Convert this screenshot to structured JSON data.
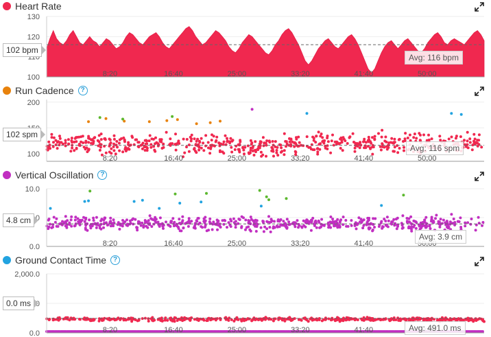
{
  "colors": {
    "heart_rate": "#f0284f",
    "cadence_dot": "#e8820c",
    "vertical_dot": "#c12fc1",
    "gct_dot": "#22a3e0",
    "green_dot": "#5cb82e",
    "help": "#2a9fd8"
  },
  "icons": {
    "expand": "expand-arrows-icon",
    "help": "question-circle-icon"
  },
  "panels": [
    {
      "title": "Heart Rate",
      "dot_color": "#f0284f",
      "help": false,
      "hover_label": "102 bpm",
      "avg_label": "Avg: 116 bpm"
    },
    {
      "title": "Run Cadence",
      "dot_color": "#e8820c",
      "help": true,
      "hover_label": "102 spm",
      "avg_label": "Avg: 116 spm"
    },
    {
      "title": "Vertical Oscillation",
      "dot_color": "#c12fc1",
      "help": true,
      "hover_label": "4.8 cm",
      "avg_label": "Avg: 3.9 cm"
    },
    {
      "title": "Ground Contact Time",
      "dot_color": "#22a3e0",
      "help": true,
      "hover_label": "0.0 ms",
      "avg_label": "Avg: 491.0 ms"
    }
  ],
  "x_ticks": [
    "8:20",
    "16:40",
    "25:00",
    "33:20",
    "41:40",
    "50:00"
  ],
  "chart_data": [
    {
      "type": "area",
      "title": "Heart Rate",
      "y_ticks": [
        "130",
        "120",
        "110",
        "100"
      ],
      "ylim": [
        100,
        130
      ],
      "xlim_min": [
        0,
        57.5
      ],
      "average": 116,
      "series": [
        {
          "name": "Heart Rate",
          "values": [
            114,
            119,
            123,
            119,
            117,
            116,
            118,
            121,
            123,
            120,
            117,
            116,
            118,
            120,
            118,
            117,
            115,
            117,
            119,
            118,
            116,
            114,
            115,
            117,
            120,
            122,
            121,
            119,
            117,
            116,
            118,
            120,
            121,
            122,
            120,
            117,
            115,
            114,
            116,
            118,
            120,
            122,
            124,
            125,
            123,
            120,
            118,
            116,
            117,
            119,
            121,
            123,
            122,
            120,
            118,
            115,
            113,
            112,
            114,
            117,
            119,
            121,
            120,
            118,
            116,
            114,
            112,
            111,
            113,
            116,
            118,
            121,
            123,
            124,
            122,
            119,
            116,
            112,
            108,
            106,
            108,
            111,
            114,
            116,
            118,
            119,
            117,
            115,
            114,
            116,
            118,
            120,
            121,
            119,
            116,
            112,
            108,
            104,
            102,
            104,
            108,
            112,
            115,
            117,
            118,
            116,
            114,
            116,
            118,
            119,
            117,
            115,
            113,
            112,
            114,
            117,
            119,
            121,
            122,
            120,
            117,
            116,
            118,
            119,
            118,
            117,
            116,
            118,
            120,
            122,
            123,
            121,
            118
          ]
        }
      ]
    },
    {
      "type": "scatter",
      "title": "Run Cadence",
      "y_ticks": [
        "200",
        "150",
        "100"
      ],
      "ylim": [
        85,
        205
      ],
      "average": 116,
      "series": [
        {
          "name": "Run Cadence",
          "center": 120,
          "spread": 18,
          "count": 600
        }
      ],
      "high_points_orange": [
        [
          5.5,
          162
        ],
        [
          7.8,
          168
        ],
        [
          10.2,
          163
        ],
        [
          13.5,
          162
        ],
        [
          15.8,
          164
        ],
        [
          17.2,
          166
        ],
        [
          19.7,
          158
        ],
        [
          21.5,
          160
        ],
        [
          22.8,
          163
        ]
      ],
      "high_points_green": [
        [
          7.0,
          170
        ],
        [
          10.0,
          167
        ],
        [
          16.5,
          172
        ]
      ],
      "high_points_blue": [
        [
          34.2,
          178
        ],
        [
          53.2,
          178
        ],
        [
          54.5,
          176
        ]
      ],
      "high_points_magenta": [
        [
          27.0,
          186
        ]
      ]
    },
    {
      "type": "scatter",
      "title": "Vertical Oscillation",
      "y_ticks": [
        "10.0",
        "5.0",
        "0.0"
      ],
      "ylim": [
        0,
        10
      ],
      "average": 3.9,
      "series": [
        {
          "name": "Vertical Oscillation",
          "center": 4.0,
          "spread": 1.1,
          "count": 600
        }
      ],
      "high_points_green": [
        [
          5.7,
          9.6
        ],
        [
          16.9,
          9.1
        ],
        [
          21.0,
          9.2
        ],
        [
          28.0,
          9.7
        ],
        [
          28.9,
          8.6
        ],
        [
          29.2,
          8.1
        ],
        [
          31.5,
          8.3
        ],
        [
          46.9,
          8.9
        ]
      ],
      "high_points_blue": [
        [
          0.5,
          6.6
        ],
        [
          5.0,
          7.8
        ],
        [
          5.5,
          7.9
        ],
        [
          11.5,
          7.8
        ],
        [
          12.6,
          8.0
        ],
        [
          14.8,
          6.6
        ],
        [
          17.5,
          7.5
        ],
        [
          20.3,
          7.7
        ],
        [
          28.2,
          7.0
        ],
        [
          44.0,
          7.1
        ]
      ]
    },
    {
      "type": "scatter",
      "title": "Ground Contact Time",
      "y_ticks": [
        "2,000.0",
        "1,000.0",
        "0.0"
      ],
      "ylim": [
        0,
        2000
      ],
      "average": 491,
      "series": [
        {
          "name": "Ground Contact Time",
          "center": 460,
          "spread": 60,
          "count": 500
        }
      ],
      "baseline_points": {
        "value": 0,
        "count": 300
      }
    }
  ]
}
